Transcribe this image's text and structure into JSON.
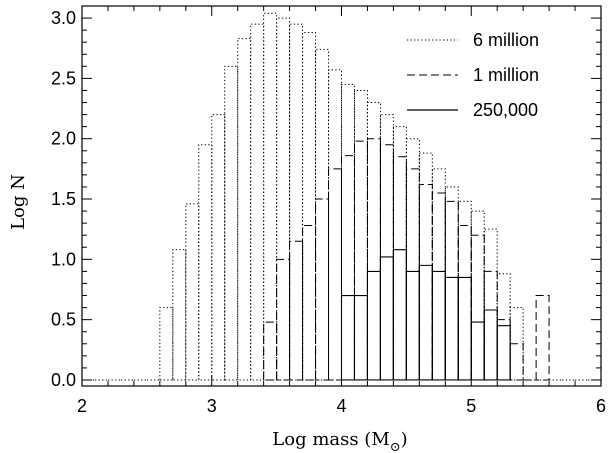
{
  "chart_data": {
    "type": "bar",
    "bin_width": 0.1,
    "xlim": [
      2,
      6
    ],
    "ylim": [
      -0.05,
      3.1
    ],
    "x_ticks": [
      2,
      3,
      4,
      5,
      6
    ],
    "y_ticks": [
      0.0,
      0.5,
      1.0,
      1.5,
      2.0,
      2.5,
      3.0
    ],
    "x_tick_labels": [
      "2",
      "3",
      "4",
      "5",
      "6"
    ],
    "y_tick_labels": [
      "0.0",
      "0.5",
      "1.0",
      "1.5",
      "2.0",
      "2.5",
      "3.0"
    ],
    "xlabel": "Log mass (M",
    "xlabel_sub": "⊙",
    "xlabel_close": ")",
    "ylabel": "Log N",
    "legend_position": "top-right",
    "grid": false,
    "series": [
      {
        "name": "6 million",
        "style": "dotted",
        "bins": [
          [
            2.0,
            0
          ],
          [
            2.1,
            0
          ],
          [
            2.2,
            0
          ],
          [
            2.3,
            0
          ],
          [
            2.4,
            0
          ],
          [
            2.5,
            0
          ],
          [
            2.6,
            0.6
          ],
          [
            2.7,
            1.08
          ],
          [
            2.8,
            1.46
          ],
          [
            2.9,
            1.95
          ],
          [
            3.0,
            2.2
          ],
          [
            3.1,
            2.6
          ],
          [
            3.2,
            2.83
          ],
          [
            3.3,
            2.95
          ],
          [
            3.4,
            3.04
          ],
          [
            3.5,
            3.0
          ],
          [
            3.6,
            2.95
          ],
          [
            3.7,
            2.88
          ],
          [
            3.8,
            2.74
          ],
          [
            3.9,
            2.57
          ],
          [
            4.0,
            2.45
          ],
          [
            4.1,
            2.4
          ],
          [
            4.2,
            2.3
          ],
          [
            4.3,
            2.2
          ],
          [
            4.4,
            2.1
          ],
          [
            4.5,
            2.0
          ],
          [
            4.6,
            1.88
          ],
          [
            4.7,
            1.75
          ],
          [
            4.8,
            1.6
          ],
          [
            4.9,
            1.48
          ],
          [
            5.0,
            1.4
          ],
          [
            5.1,
            1.25
          ],
          [
            5.2,
            0.88
          ],
          [
            5.3,
            0.6
          ],
          [
            5.4,
            0
          ],
          [
            5.5,
            0
          ],
          [
            5.6,
            0
          ],
          [
            5.7,
            0
          ],
          [
            5.8,
            0
          ],
          [
            5.9,
            0
          ]
        ]
      },
      {
        "name": "1 million",
        "style": "dashed",
        "bins": [
          [
            3.4,
            0.48
          ],
          [
            3.5,
            1.0
          ],
          [
            3.6,
            1.15
          ],
          [
            3.7,
            1.28
          ],
          [
            3.8,
            1.5
          ],
          [
            3.9,
            1.75
          ],
          [
            4.0,
            1.86
          ],
          [
            4.1,
            1.98
          ],
          [
            4.2,
            2.0
          ],
          [
            4.3,
            1.95
          ],
          [
            4.4,
            1.85
          ],
          [
            4.5,
            1.75
          ],
          [
            4.6,
            1.62
          ],
          [
            4.7,
            1.55
          ],
          [
            4.8,
            1.48
          ],
          [
            4.9,
            1.28
          ],
          [
            5.0,
            1.2
          ],
          [
            5.1,
            0.9
          ],
          [
            5.2,
            0.5
          ],
          [
            5.3,
            0.3
          ],
          [
            5.4,
            0
          ],
          [
            5.5,
            0.7
          ]
        ]
      },
      {
        "name": "250,000",
        "style": "solid",
        "bins": [
          [
            4.0,
            0.7
          ],
          [
            4.1,
            0.7
          ],
          [
            4.2,
            0.9
          ],
          [
            4.3,
            1.02
          ],
          [
            4.4,
            1.08
          ],
          [
            4.5,
            0.9
          ],
          [
            4.6,
            0.95
          ],
          [
            4.7,
            0.9
          ],
          [
            4.8,
            0.85
          ],
          [
            4.9,
            0.85
          ],
          [
            5.0,
            0.48
          ],
          [
            5.1,
            0.58
          ],
          [
            5.2,
            0.45
          ]
        ]
      }
    ]
  }
}
